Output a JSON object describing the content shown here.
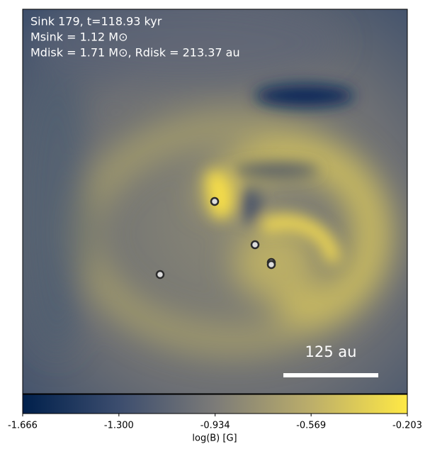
{
  "chart_data": {
    "type": "image",
    "annotations": [
      "Sink 179, t=118.93 kyr",
      "Msink = 1.12 M⊙",
      "Mdisk = 1.71 M⊙, Rdisk = 213.37 au"
    ],
    "scale_bar_label": "125 au",
    "colorbar_label": "log(B) [G]",
    "colormap": [
      "#00204c",
      "#3c4d6e",
      "#7c7b78",
      "#bcae6a",
      "#ffe945"
    ],
    "clim": [
      -1.666,
      -0.203
    ],
    "cticks": [
      -1.666,
      {
        "value": -1.3,
        "label": "-1.300"
      },
      -0.934,
      -0.569,
      -0.203
    ]
  }
}
